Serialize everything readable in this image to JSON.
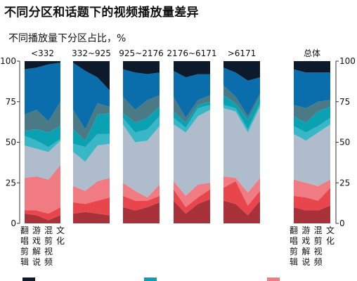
{
  "title": "不同分区和话题下的视频播放量差异",
  "chart_data": {
    "type": "area",
    "subtitle": "不同播放量下分区占比，%",
    "y_ticks": [
      "0",
      "25",
      "50",
      "75",
      "100"
    ],
    "ylim": [
      0,
      100
    ],
    "x_categories": [
      "翻唱剪辑",
      "游戏解说",
      "混剪视频",
      "文化"
    ],
    "groups": [
      {
        "name": "<332",
        "boundaries": [
          [
            0,
            0,
            0,
            0
          ],
          [
            6,
            5,
            2,
            5
          ],
          [
            8,
            8,
            6,
            10
          ],
          [
            28,
            29,
            27,
            36
          ],
          [
            48,
            46,
            44,
            51
          ],
          [
            54,
            51,
            47,
            52
          ],
          [
            57,
            58,
            56,
            60
          ],
          [
            67,
            70,
            63,
            75
          ],
          [
            95,
            96,
            98,
            99
          ],
          [
            100,
            100,
            100,
            100
          ]
        ]
      },
      {
        "name": "332~925",
        "boundaries": [
          [
            0,
            0,
            0,
            0
          ],
          [
            6,
            7,
            6,
            5
          ],
          [
            13,
            12,
            14,
            16
          ],
          [
            23,
            20,
            26,
            28
          ],
          [
            44,
            38,
            48,
            49
          ],
          [
            49,
            47,
            55,
            55
          ],
          [
            58,
            51,
            67,
            68
          ],
          [
            70,
            58,
            74,
            72
          ],
          [
            99,
            94,
            90,
            82
          ],
          [
            100,
            100,
            100,
            100
          ]
        ]
      },
      {
        "name": "925~2176",
        "boundaries": [
          [
            0,
            0,
            0,
            0
          ],
          [
            10,
            8,
            10,
            13
          ],
          [
            17,
            14,
            14,
            17
          ],
          [
            25,
            20,
            16,
            24
          ],
          [
            61,
            50,
            51,
            60
          ],
          [
            65,
            56,
            58,
            66
          ],
          [
            68,
            62,
            65,
            72
          ],
          [
            78,
            70,
            76,
            79
          ],
          [
            95,
            93,
            92,
            93
          ],
          [
            100,
            100,
            100,
            100
          ]
        ]
      },
      {
        "name": "2176~6171",
        "boundaries": [
          [
            0,
            0,
            0,
            0
          ],
          [
            14,
            6,
            12,
            15
          ],
          [
            21,
            10,
            16,
            21
          ],
          [
            26,
            17,
            24,
            25
          ],
          [
            61,
            56,
            66,
            70
          ],
          [
            65,
            59,
            71,
            73
          ],
          [
            69,
            62,
            73,
            75
          ],
          [
            78,
            65,
            76,
            79
          ],
          [
            94,
            90,
            92,
            92
          ],
          [
            100,
            100,
            100,
            100
          ]
        ]
      },
      {
        "name": ">6171",
        "boundaries": [
          [
            0,
            0,
            0,
            0
          ],
          [
            14,
            12,
            5,
            14
          ],
          [
            22,
            26,
            11,
            20
          ],
          [
            29,
            28,
            19,
            28
          ],
          [
            71,
            69,
            56,
            72
          ],
          [
            73,
            71,
            58,
            74
          ],
          [
            79,
            74,
            64,
            78
          ],
          [
            85,
            78,
            66,
            80
          ],
          [
            96,
            93,
            88,
            90
          ],
          [
            100,
            100,
            100,
            100
          ]
        ]
      },
      {
        "name": "总体",
        "boundaries": [
          [
            0,
            0,
            0,
            0
          ],
          [
            10,
            8,
            8,
            11
          ],
          [
            17,
            16,
            14,
            22
          ],
          [
            27,
            25,
            23,
            27
          ],
          [
            55,
            51,
            56,
            61
          ],
          [
            60,
            56,
            60,
            65
          ],
          [
            66,
            62,
            69,
            72
          ],
          [
            73,
            71,
            75,
            76
          ],
          [
            95,
            93,
            93,
            93
          ],
          [
            100,
            100,
            100,
            100
          ]
        ]
      }
    ],
    "layer_colors": [
      "#a8313a",
      "#e8454d",
      "#f07b82",
      "#aebccc",
      "#3ab7c7",
      "#0aa2b3",
      "#4a7a86",
      "#0a6dac",
      "#0c1a2b"
    ],
    "legend_swatch_colors": [
      "#0c1a2b",
      "#0aa2b3",
      "#f07b82"
    ],
    "grid": false
  }
}
